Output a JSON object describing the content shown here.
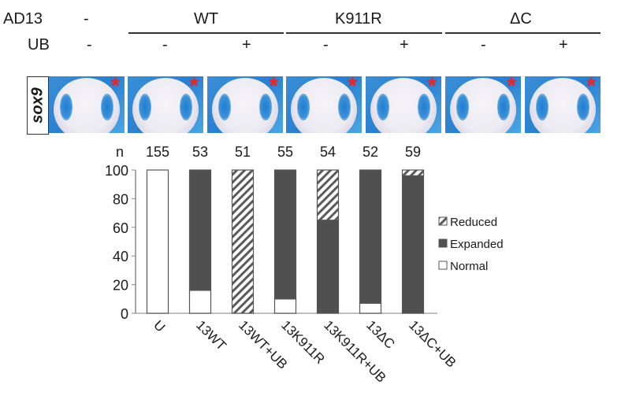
{
  "header": {
    "row1_label": "AD13",
    "row2_label": "UB",
    "ad13_values": [
      "-",
      "WT",
      "K911R",
      "ΔC"
    ],
    "ub_values": [
      "-",
      "-",
      "+",
      "-",
      "+",
      "-",
      "+"
    ]
  },
  "panels": {
    "gene_label": "sox9",
    "marker": "*",
    "count": 7
  },
  "colors": {
    "expanded": "#505050",
    "normal": "#ffffff",
    "reduced_hatch": "#5a5a5a",
    "axis": "#888888",
    "star": "#e8262a",
    "embryo_bg": "#2f86d4"
  },
  "chart_data": {
    "type": "bar",
    "stacked": true,
    "percent": true,
    "title": "",
    "xlabel": "",
    "ylabel": "",
    "n_label": "n",
    "n_values": [
      "155",
      "53",
      "51",
      "55",
      "54",
      "52",
      "59"
    ],
    "categories": [
      "U",
      "13WT",
      "13WT+UB",
      "13K911R",
      "13K911R+UB",
      "13ΔC",
      "13ΔC+UB"
    ],
    "series": [
      {
        "name": "Normal",
        "fill": "white",
        "values": [
          100,
          16,
          0,
          10,
          0,
          7,
          0
        ]
      },
      {
        "name": "Expanded",
        "fill": "dark",
        "values": [
          0,
          84,
          0,
          90,
          65,
          93,
          96
        ]
      },
      {
        "name": "Reduced",
        "fill": "hatched",
        "values": [
          0,
          0,
          100,
          0,
          35,
          0,
          4
        ]
      }
    ],
    "yticks": [
      "0",
      "20",
      "40",
      "60",
      "80",
      "100"
    ],
    "ylim": [
      0,
      100
    ],
    "grid": false,
    "legend": {
      "placement": "right",
      "entries": [
        "Reduced",
        "Expanded",
        "Normal"
      ]
    }
  }
}
